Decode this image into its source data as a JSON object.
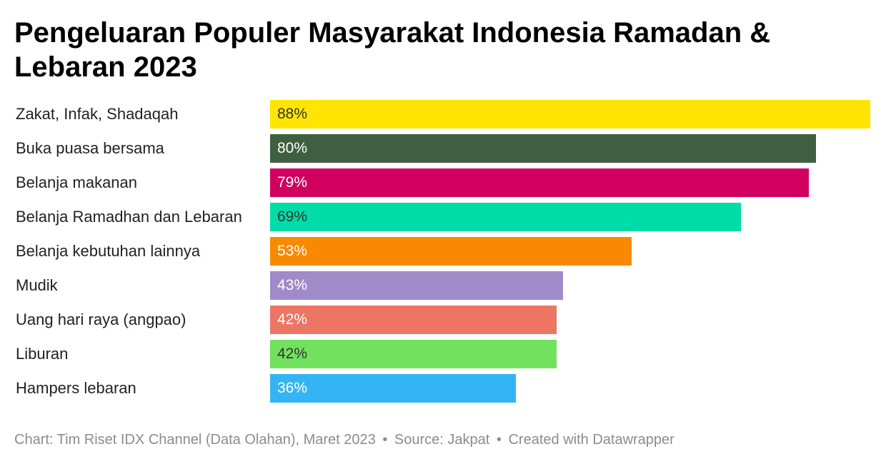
{
  "chart_data": {
    "type": "bar",
    "orientation": "horizontal",
    "title": "Pengeluaran Populer Masyarakat Indonesia Ramadan & Lebaran 2023",
    "categories": [
      "Zakat, Infak, Shadaqah",
      "Buka puasa bersama",
      "Belanja makanan",
      "Belanja Ramadhan dan Lebaran",
      "Belanja kebutuhan lainnya",
      "Mudik",
      "Uang hari raya (angpao)",
      "Liburan",
      "Hampers lebaran"
    ],
    "values": [
      88,
      80,
      79,
      69,
      53,
      43,
      42,
      42,
      36
    ],
    "value_labels": [
      "88%",
      "80%",
      "79%",
      "69%",
      "53%",
      "43%",
      "42%",
      "42%",
      "36%"
    ],
    "bar_colors": [
      "#ffe500",
      "#405f40",
      "#d10060",
      "#00dca8",
      "#f98a00",
      "#a08ac9",
      "#ec7564",
      "#72e15e",
      "#33b5f5"
    ],
    "label_colors": [
      "#333333",
      "#ffffff",
      "#ffffff",
      "#333333",
      "#ffffff",
      "#ffffff",
      "#ffffff",
      "#333333",
      "#ffffff"
    ],
    "xlim": [
      0,
      88
    ],
    "grid": false,
    "legend": "none"
  },
  "footer": {
    "chart_credit": "Chart: Tim Riset IDX Channel (Data Olahan), Maret 2023",
    "separator": "•",
    "source": "Source: Jakpat",
    "tool_credit": "Created with Datawrapper"
  }
}
